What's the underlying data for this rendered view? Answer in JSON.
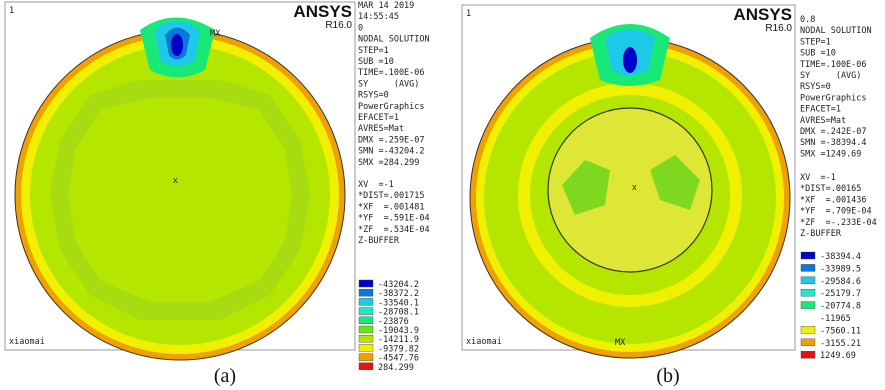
{
  "panels": [
    {
      "caption": "(a)",
      "brand": "ANSYS",
      "version": "R16.0",
      "corner": "1",
      "user": "xiaomai",
      "mx": "MX",
      "info_top": [
        "MAR 14 2019",
        "14:55:45",
        "0",
        "NODAL SOLUTION",
        "STEP=1",
        "SUB =10",
        "TIME=.100E-06",
        "SY     (AVG)",
        "RSYS=0",
        "PowerGraphics",
        "EFACET=1",
        "AVRES=Mat",
        "DMX =.259E-07",
        "SMN =-43204.2",
        "SMX =284.299"
      ],
      "info_bottom": [
        "XV  =-1",
        "*DIST=.001715",
        "*XF  =.001481",
        "*YF  =.591E-04",
        "*ZF  =.534E-04",
        "Z-BUFFER"
      ],
      "legend": [
        {
          "label": "-43204.2",
          "color": "#0000c8"
        },
        {
          "label": "-38372.2",
          "color": "#0a78d8"
        },
        {
          "label": "-33540.1",
          "color": "#1ec8e8"
        },
        {
          "label": "-28708.1",
          "color": "#20e8c8"
        },
        {
          "label": "-23876",
          "color": "#18e878"
        },
        {
          "label": "-19043.9",
          "color": "#70e018"
        },
        {
          "label": "-14211.9",
          "color": "#b4e600"
        },
        {
          "label": "-9379.82",
          "color": "#f0f000"
        },
        {
          "label": "-4547.76",
          "color": "#f0a000"
        },
        {
          "label": "284.299",
          "color": "#e81010"
        }
      ]
    },
    {
      "caption": "(b)",
      "brand": "ANSYS",
      "version": "R16.0",
      "corner": "1",
      "user": "xiaomai",
      "mx": "MX",
      "info_top": [
        "0.8",
        "NODAL SOLUTION",
        "STEP=1",
        "SUB =10",
        "TIME=.100E-06",
        "SY     (AVG)",
        "RSYS=0",
        "PowerGraphics",
        "EFACET=1",
        "AVRES=Mat",
        "DMX =.242E-07",
        "SMN =-38394.4",
        "SMX =1249.69"
      ],
      "info_bottom": [
        "XV  =-1",
        "*DIST=.00165",
        "*XF  =.001436",
        "*YF  =.709E-04",
        "*ZF  =-.233E-04",
        "Z-BUFFER"
      ],
      "legend": [
        {
          "label": "-38394.4",
          "color": "#0000c8"
        },
        {
          "label": "-33989.5",
          "color": "#0a78d8"
        },
        {
          "label": "-29584.6",
          "color": "#1ec8e8"
        },
        {
          "label": "-25179.7",
          "color": "#20e8c8"
        },
        {
          "label": "-20774.8",
          "color": "#18e878"
        },
        {
          "label": "-11965",
          "color": "#ffffff"
        },
        {
          "label": "-7560.11",
          "color": "#f0f000"
        },
        {
          "label": "-3155.21",
          "color": "#f0a000"
        },
        {
          "label": "1249.69",
          "color": "#e81010"
        }
      ]
    }
  ]
}
